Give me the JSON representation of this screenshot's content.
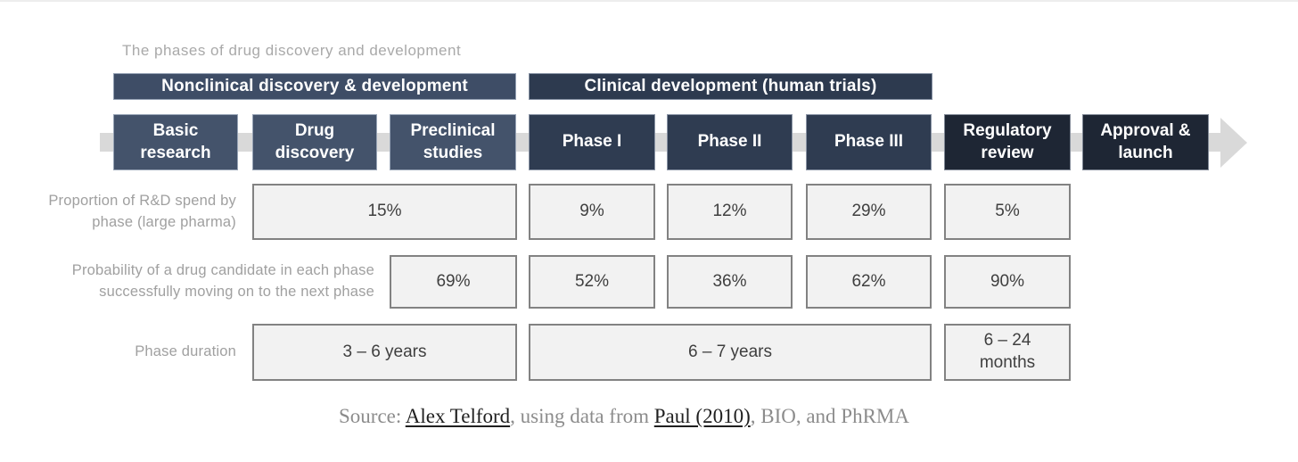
{
  "title": "The phases of drug discovery and development",
  "group_headers": {
    "nonclinical": "Nonclinical discovery & development",
    "clinical": "Clinical development (human trials)"
  },
  "phases": [
    {
      "label": "Basic research"
    },
    {
      "label": "Drug discovery"
    },
    {
      "label": "Preclinical studies"
    },
    {
      "label": "Phase I"
    },
    {
      "label": "Phase II"
    },
    {
      "label": "Phase III"
    },
    {
      "label": "Regulatory review"
    },
    {
      "label": "Approval & launch"
    }
  ],
  "rows": {
    "rnd_spend": {
      "label_line1": "Proportion of R&D spend by",
      "label_line2": "phase (large pharma)",
      "nonclinical": "15%",
      "phase1": "9%",
      "phase2": "12%",
      "phase3": "29%",
      "regulatory": "5%"
    },
    "success_probability": {
      "label_line1": "Probability of a drug candidate in each phase",
      "label_line2": "successfully moving on to the next phase",
      "preclinical": "69%",
      "phase1": "52%",
      "phase2": "36%",
      "phase3": "62%",
      "regulatory": "90%"
    },
    "duration": {
      "label": "Phase duration",
      "nonclinical": "3 – 6 years",
      "clinical": "6 – 7 years",
      "regulatory": "6 – 24 months"
    }
  },
  "source": {
    "prefix": "Source: ",
    "author_link": "Alex Telford",
    "middle": ", using data from ",
    "paper_link": "Paul (2010)",
    "suffix": ", BIO, and PhRMA"
  },
  "colors": {
    "nonclinical_header": "#3e4d66",
    "clinical_header": "#2d3a4f",
    "nonclinical_box": "#44536b",
    "clinical_box": "#2f3c51",
    "late_stage_box": "#1e2634",
    "arrow_gray": "#d9d9d9",
    "data_cell_bg": "#f2f2f2",
    "data_cell_border": "#828282",
    "label_gray": "#a0a0a0"
  }
}
